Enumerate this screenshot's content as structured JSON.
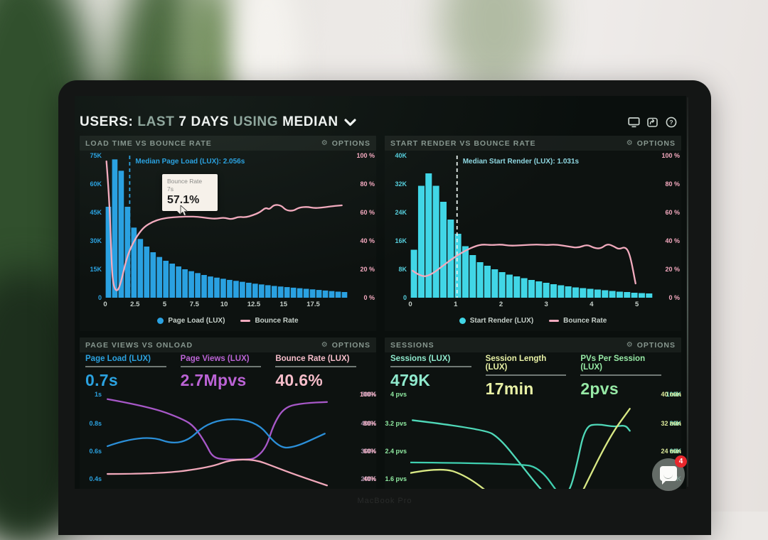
{
  "titlebar": {
    "segments": [
      {
        "text": "USERS:"
      },
      {
        "text": "LAST"
      },
      {
        "text": "7 DAYS"
      },
      {
        "text": "USING"
      },
      {
        "text": "MEDIAN"
      }
    ],
    "icons": [
      "display",
      "share",
      "help"
    ]
  },
  "laptop_label": "MacBook Pro",
  "chat": {
    "badge": "4"
  },
  "colors": {
    "blue": "#2ba2e0",
    "cyan": "#41d6e6",
    "pink": "#f2abbe",
    "purple": "#bb63d5",
    "teal": "#8fe9cd",
    "yellow_green": "#e9f2a6",
    "green": "#97eaa6"
  },
  "chart_data": [
    {
      "type": "histogram",
      "title": "LOAD TIME VS BOUNCE RATE",
      "options_label": "OPTIONS",
      "x_ticks": [
        "0",
        "2.5",
        "5",
        "7.5",
        "10",
        "12.5",
        "15",
        "17.5"
      ],
      "x_max": 20.4,
      "y_left": {
        "ticks": [
          "75K",
          "60K",
          "45K",
          "30K",
          "15K",
          "0"
        ],
        "max": 75,
        "color": "#2ba2e0"
      },
      "y_right": {
        "ticks": [
          "100 %",
          "80 %",
          "60 %",
          "40 %",
          "20 %",
          "0 %"
        ],
        "max": 100,
        "color": "#f4a9bf"
      },
      "bars": {
        "name": "Page Load (LUX)",
        "color": "#2aa1e1",
        "values": [
          48,
          73,
          67,
          48,
          37,
          31,
          27,
          24,
          21.5,
          19.5,
          18,
          16.5,
          15,
          14,
          13,
          12,
          11.2,
          10.6,
          10,
          9.4,
          8.9,
          8.4,
          7.9,
          7.4,
          7,
          6.6,
          6.2,
          5.9,
          5.6,
          5.3,
          5,
          4.7,
          4.4,
          4.1,
          3.8,
          3.5,
          3.2,
          3
        ]
      },
      "line": {
        "name": "Bounce Rate",
        "color": "#f2abbe",
        "points": [
          [
            0.1,
            96
          ],
          [
            0.35,
            70
          ],
          [
            0.55,
            20
          ],
          [
            0.7,
            8
          ],
          [
            1.0,
            4
          ],
          [
            1.3,
            10
          ],
          [
            1.8,
            28
          ],
          [
            2.3,
            38
          ],
          [
            2.8,
            45
          ],
          [
            3.3,
            50
          ],
          [
            4.0,
            53.5
          ],
          [
            4.7,
            55.5
          ],
          [
            5.5,
            56.5
          ],
          [
            6.5,
            57
          ],
          [
            7.0,
            57.1
          ],
          [
            7.8,
            57
          ],
          [
            8.6,
            56
          ],
          [
            9.3,
            55.5
          ],
          [
            10.0,
            56.5
          ],
          [
            10.6,
            55
          ],
          [
            11.2,
            57
          ],
          [
            11.8,
            56.5
          ],
          [
            12.4,
            58
          ],
          [
            13.0,
            60
          ],
          [
            13.5,
            63.5
          ],
          [
            13.8,
            62
          ],
          [
            14.2,
            65.5
          ],
          [
            14.8,
            65
          ],
          [
            15.2,
            61.5
          ],
          [
            15.8,
            61
          ],
          [
            16.3,
            63.5
          ],
          [
            17.0,
            64
          ],
          [
            17.6,
            63
          ],
          [
            18.3,
            63.5
          ],
          [
            19.2,
            64.5
          ],
          [
            19.9,
            65
          ]
        ]
      },
      "median": {
        "x": 2.056,
        "label": "Median Page Load (LUX): 2.056s",
        "line_color": "#2ba2e0",
        "label_color": "#2ba2e0"
      },
      "tooltip": {
        "title": "Bounce Rate",
        "subtitle": "7s",
        "value": "57.1%"
      },
      "legend": [
        {
          "marker": "dot",
          "color": "#2aa1e1",
          "label": "Page Load (LUX)"
        },
        {
          "marker": "line",
          "color": "#f2abbe",
          "label": "Bounce Rate"
        }
      ]
    },
    {
      "type": "histogram",
      "title": "START RENDER VS BOUNCE RATE",
      "options_label": "OPTIONS",
      "x_ticks": [
        "0",
        "1",
        "2",
        "3",
        "4",
        "5"
      ],
      "x_max": 5.35,
      "y_left": {
        "ticks": [
          "40K",
          "32K",
          "24K",
          "16K",
          "8K",
          "0"
        ],
        "max": 40,
        "color": "#56cfdd"
      },
      "y_right": {
        "ticks": [
          "100 %",
          "80 %",
          "60 %",
          "40 %",
          "20 %",
          "0 %"
        ],
        "max": 100,
        "color": "#f4a9bf"
      },
      "bars": {
        "name": "Start Render (LUX)",
        "color": "#41d6e6",
        "values": [
          13.5,
          31.5,
          35,
          31.5,
          27,
          22,
          18,
          14.5,
          12,
          10,
          9,
          8,
          7.2,
          6.5,
          6,
          5.5,
          5,
          4.6,
          4.2,
          3.8,
          3.5,
          3.2,
          2.9,
          2.7,
          2.5,
          2.3,
          2.1,
          1.9,
          1.7,
          1.6,
          1.4,
          1.3,
          1.2
        ]
      },
      "line": {
        "name": "Bounce Rate",
        "color": "#f2abbe",
        "points": [
          [
            0.05,
            19
          ],
          [
            0.25,
            14.5
          ],
          [
            0.45,
            16
          ],
          [
            0.7,
            22
          ],
          [
            0.95,
            28
          ],
          [
            1.2,
            33
          ],
          [
            1.45,
            36.5
          ],
          [
            1.6,
            37.5
          ],
          [
            1.8,
            37
          ],
          [
            2.0,
            37.5
          ],
          [
            2.2,
            36.5
          ],
          [
            2.5,
            37
          ],
          [
            2.8,
            37.5
          ],
          [
            3.0,
            37
          ],
          [
            3.2,
            37.5
          ],
          [
            3.5,
            36
          ],
          [
            3.7,
            35
          ],
          [
            3.9,
            37.5
          ],
          [
            4.05,
            35
          ],
          [
            4.2,
            34.5
          ],
          [
            4.35,
            38
          ],
          [
            4.5,
            36
          ],
          [
            4.6,
            34
          ],
          [
            4.75,
            36
          ],
          [
            4.85,
            30
          ],
          [
            4.97,
            10
          ]
        ]
      },
      "median": {
        "x": 1.031,
        "label": "Median Start Render (LUX): 1.031s",
        "line_color": "#e8f2ee",
        "label_color": "#8fd8e2"
      },
      "legend": [
        {
          "marker": "dot",
          "color": "#41d6e6",
          "label": "Start Render (LUX)"
        },
        {
          "marker": "line",
          "color": "#f2abbe",
          "label": "Bounce Rate"
        }
      ]
    },
    {
      "type": "multiline",
      "title": "PAGE VIEWS VS ONLOAD",
      "options_label": "OPTIONS",
      "metrics": [
        {
          "label": "Page Load (LUX)",
          "value": "0.7s",
          "color": "#2ba2e0"
        },
        {
          "label": "Page Views (LUX)",
          "value": "2.7Mpvs",
          "color": "#bb63d5"
        },
        {
          "label": "Bounce Rate (LUX)",
          "value": "40.6%",
          "color": "#f6bdca"
        }
      ],
      "y_left": {
        "ticks": [
          "1s",
          "0.8s",
          "0.6s",
          "0.4s"
        ],
        "color": "#2ba2e0"
      },
      "y_right": {
        "ticks": [
          [
            "500K",
            "100%"
          ],
          [
            "400K",
            "80%"
          ],
          [
            "300K",
            "60%"
          ],
          [
            "200K",
            "40%"
          ]
        ],
        "colors": [
          "#9d8aa4",
          "#f3aec2"
        ]
      },
      "tick_pos": [
        0,
        30,
        59,
        88
      ],
      "lines": [
        {
          "name": "Page Views (LUX)",
          "color": "#a758c8",
          "points": [
            [
              1,
              5
            ],
            [
              20,
              13
            ],
            [
              35,
              26
            ],
            [
              40,
              34
            ],
            [
              45,
              52
            ],
            [
              48,
              66
            ],
            [
              54,
              68
            ],
            [
              63,
              68
            ],
            [
              67,
              67
            ],
            [
              72,
              55
            ],
            [
              75,
              32
            ],
            [
              80,
              13
            ],
            [
              89,
              9
            ],
            [
              99,
              8
            ]
          ]
        },
        {
          "name": "Page Load (LUX)",
          "color": "#2b8fd8",
          "points": [
            [
              1,
              54
            ],
            [
              17,
              41
            ],
            [
              34,
              55
            ],
            [
              47,
              26
            ],
            [
              67,
              26
            ],
            [
              77,
              55
            ],
            [
              84,
              56
            ],
            [
              98,
              41
            ]
          ]
        },
        {
          "name": "Bounce Rate (LUX)",
          "color": "#f0a8ba",
          "points": [
            [
              1,
              83
            ],
            [
              25,
              83
            ],
            [
              47,
              76
            ],
            [
              56,
              68
            ],
            [
              67,
              68
            ],
            [
              75,
              75
            ],
            [
              84,
              83
            ],
            [
              99,
              95
            ]
          ]
        }
      ]
    },
    {
      "type": "multiline",
      "title": "SESSIONS",
      "options_label": "OPTIONS",
      "metrics": [
        {
          "label": "Sessions (LUX)",
          "value": "479K",
          "color": "#8fe9cd"
        },
        {
          "label": "Session Length (LUX)",
          "value": "17min",
          "color": "#e9f2a6"
        },
        {
          "label": "PVs Per Session (LUX)",
          "value": "2pvs",
          "color": "#97eaa6"
        }
      ],
      "y_left": {
        "ticks": [
          "4 pvs",
          "3.2 pvs",
          "2.4 pvs",
          "1.6 pvs"
        ],
        "color": "#8fe9a0"
      },
      "y_right": {
        "ticks": [
          [
            "100K",
            "40 min"
          ],
          [
            "80K",
            "32 min"
          ],
          [
            "60K",
            "24 min"
          ],
          [
            "40K",
            ""
          ]
        ],
        "colors": [
          "#7fe4c9",
          "#dcea9b"
        ]
      },
      "tick_pos": [
        0,
        30,
        59,
        88
      ],
      "lines": [
        {
          "name": "PVs Per Session (LUX)",
          "color": "#4fd8b8",
          "points": [
            [
              1,
              27
            ],
            [
              33,
              36
            ],
            [
              40,
              46
            ],
            [
              49,
              72
            ],
            [
              55,
              90
            ],
            [
              61,
              106
            ],
            [
              66,
              112
            ],
            [
              71,
              102
            ],
            [
              74,
              77
            ],
            [
              78,
              33
            ],
            [
              84,
              31
            ],
            [
              91,
              34
            ],
            [
              96,
              32
            ],
            [
              98,
              38
            ]
          ]
        },
        {
          "name": "Sessions (LUX)",
          "color": "#3fcfb0",
          "points": [
            [
              0,
              71
            ],
            [
              49,
              72
            ],
            [
              58,
              77
            ],
            [
              67,
              106
            ],
            [
              70,
              116
            ]
          ]
        },
        {
          "name": "Session Length (LUX)",
          "color": "#d8e884",
          "points": [
            [
              0,
              82
            ],
            [
              14,
              76
            ],
            [
              25,
              85
            ],
            [
              37,
              106
            ],
            [
              40,
              116
            ],
            [
              74,
              116
            ],
            [
              76,
              105
            ],
            [
              89,
              44
            ],
            [
              98,
              15
            ]
          ]
        }
      ]
    }
  ]
}
